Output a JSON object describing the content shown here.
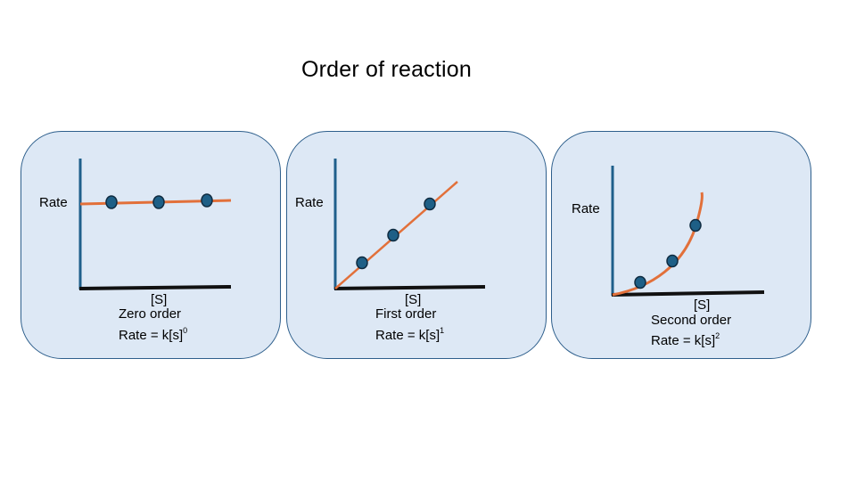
{
  "title": "Order of reaction",
  "colors": {
    "panel_fill": "#dde8f5",
    "panel_border": "#2e5f8c",
    "y_axis": "#1f5f8b",
    "x_axis": "#111111",
    "curve": "#e2703a",
    "point_fill": "#1e5f86",
    "point_stroke": "#0f2b40"
  },
  "panels": [
    {
      "id": "zero",
      "y_label": "Rate",
      "x_label": "[S]",
      "name": "Zero order",
      "equation": "Rate = k[s]",
      "exponent": "0"
    },
    {
      "id": "first",
      "y_label": "Rate",
      "x_label": "[S]",
      "name": "First order",
      "equation": "Rate = k[s]",
      "exponent": "1"
    },
    {
      "id": "second",
      "y_label": "Rate",
      "x_label": "[S]",
      "name": "Second order",
      "equation": "Rate = k[s]",
      "exponent": "2"
    }
  ]
}
